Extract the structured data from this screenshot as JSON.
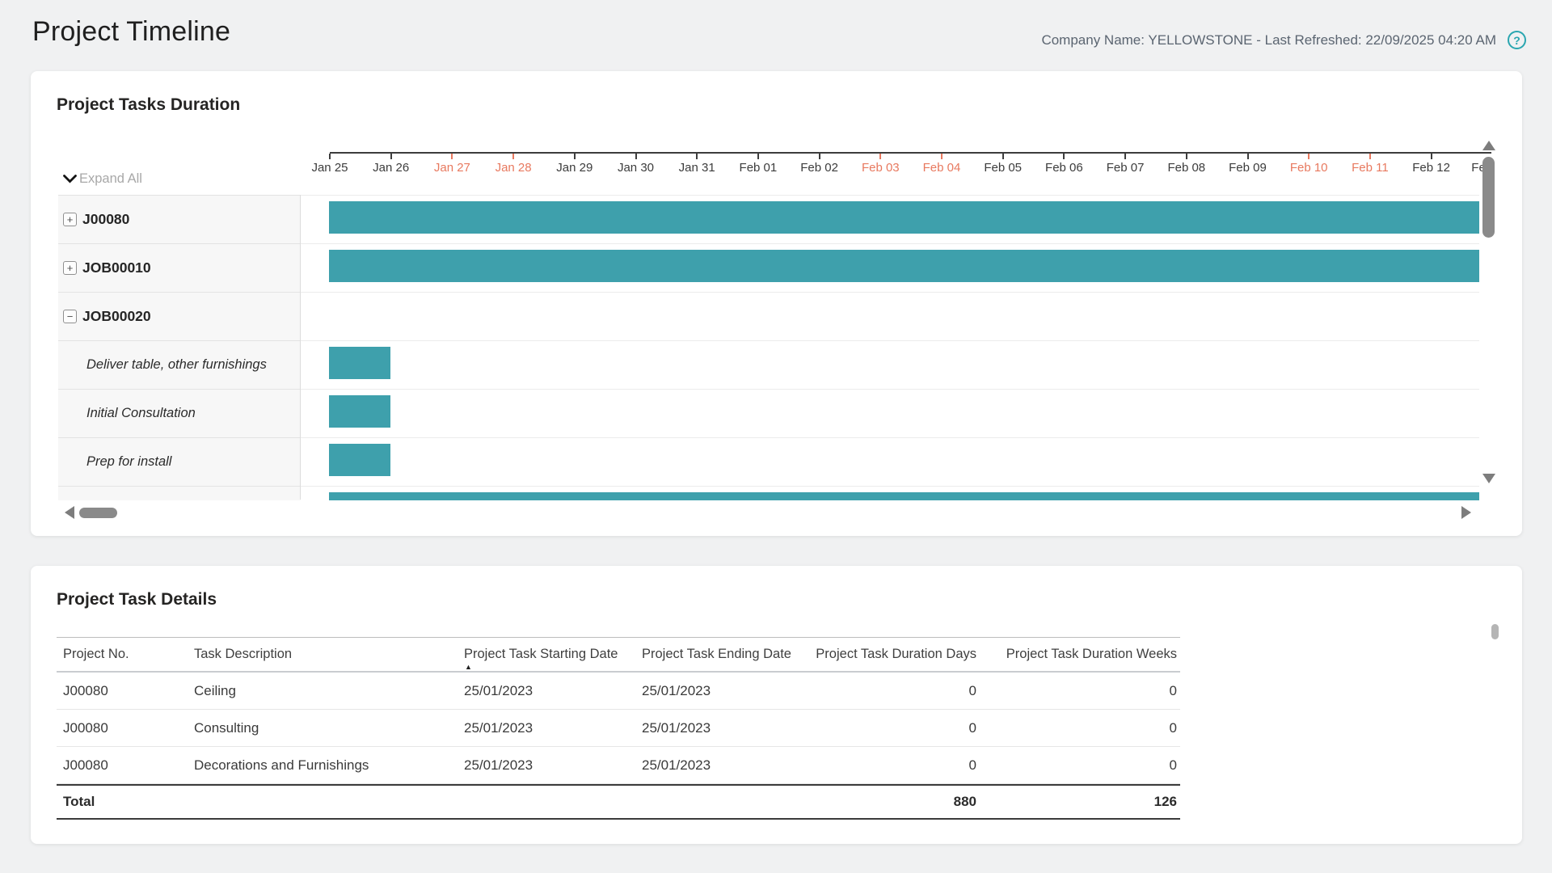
{
  "page": {
    "title": "Project Timeline",
    "header_right_text": "Company Name: YELLOWSTONE - Last Refreshed: 22/09/2025 04:20 AM",
    "help_icon_glyph": "?"
  },
  "colors": {
    "accent_teal": "#2AA6B0",
    "gantt_bar": "#3EA0AC",
    "weekend_label": "#E8795F",
    "page_background": "#F0F1F2"
  },
  "gantt_card": {
    "title": "Project Tasks Duration",
    "expand_all_label": "Expand All"
  },
  "chart_data": {
    "type": "gantt",
    "title": "Project Tasks Duration",
    "x_axis": {
      "unit": "day",
      "first_visible": "Jan 25",
      "last_fully_visible": "Feb 12",
      "ticks": [
        {
          "label": "Jan 25",
          "weekend": false
        },
        {
          "label": "Jan 26",
          "weekend": false
        },
        {
          "label": "Jan 27",
          "weekend": true
        },
        {
          "label": "Jan 28",
          "weekend": true
        },
        {
          "label": "Jan 29",
          "weekend": false
        },
        {
          "label": "Jan 30",
          "weekend": false
        },
        {
          "label": "Jan 31",
          "weekend": false
        },
        {
          "label": "Feb 01",
          "weekend": false
        },
        {
          "label": "Feb 02",
          "weekend": false
        },
        {
          "label": "Feb 03",
          "weekend": true
        },
        {
          "label": "Feb 04",
          "weekend": true
        },
        {
          "label": "Feb 05",
          "weekend": false
        },
        {
          "label": "Feb 06",
          "weekend": false
        },
        {
          "label": "Feb 07",
          "weekend": false
        },
        {
          "label": "Feb 08",
          "weekend": false
        },
        {
          "label": "Feb 09",
          "weekend": false
        },
        {
          "label": "Feb 10",
          "weekend": true
        },
        {
          "label": "Feb 11",
          "weekend": true
        },
        {
          "label": "Feb 12",
          "weekend": false
        },
        {
          "label": "Fe",
          "weekend": false,
          "partial": true
        }
      ]
    },
    "rows": [
      {
        "label": "J00080",
        "level": "project",
        "expand": "collapsed",
        "bar": {
          "start_day": 0,
          "end_day": 19.5,
          "clipped_right": true
        }
      },
      {
        "label": "JOB00010",
        "level": "project",
        "expand": "collapsed",
        "bar": {
          "start_day": 0,
          "end_day": 19.5,
          "clipped_right": true
        }
      },
      {
        "label": "JOB00020",
        "level": "project",
        "expand": "expanded",
        "bar": null
      },
      {
        "label": "Deliver table, other furnishings",
        "level": "task",
        "bar": {
          "start_day": 0,
          "end_day": 1
        }
      },
      {
        "label": "Initial Consultation",
        "level": "task",
        "bar": {
          "start_day": 0,
          "end_day": 1
        }
      },
      {
        "label": "Prep for install",
        "level": "task",
        "bar": {
          "start_day": 0,
          "end_day": 1
        }
      },
      {
        "label": null,
        "level": "task",
        "clipped_bottom": true,
        "bar": {
          "start_day": 0,
          "end_day": 19.5,
          "clipped_right": true
        }
      }
    ]
  },
  "details_card": {
    "title": "Project Task Details",
    "columns": [
      {
        "label": "Project No."
      },
      {
        "label": "Task Description"
      },
      {
        "label": "Project Task Starting Date",
        "sorted": "ascending"
      },
      {
        "label": "Project Task Ending Date"
      },
      {
        "label": "Project Task Duration Days"
      },
      {
        "label": "Project Task Duration Weeks"
      }
    ],
    "rows": [
      [
        "J00080",
        "Ceiling",
        "25/01/2023",
        "25/01/2023",
        "0",
        "0"
      ],
      [
        "J00080",
        "Consulting",
        "25/01/2023",
        "25/01/2023",
        "0",
        "0"
      ],
      [
        "J00080",
        "Decorations and Furnishings",
        "25/01/2023",
        "25/01/2023",
        "0",
        "0"
      ]
    ],
    "total_row": {
      "label": "Total",
      "project_task_duration_days": "880",
      "project_task_duration_weeks": "126"
    }
  }
}
